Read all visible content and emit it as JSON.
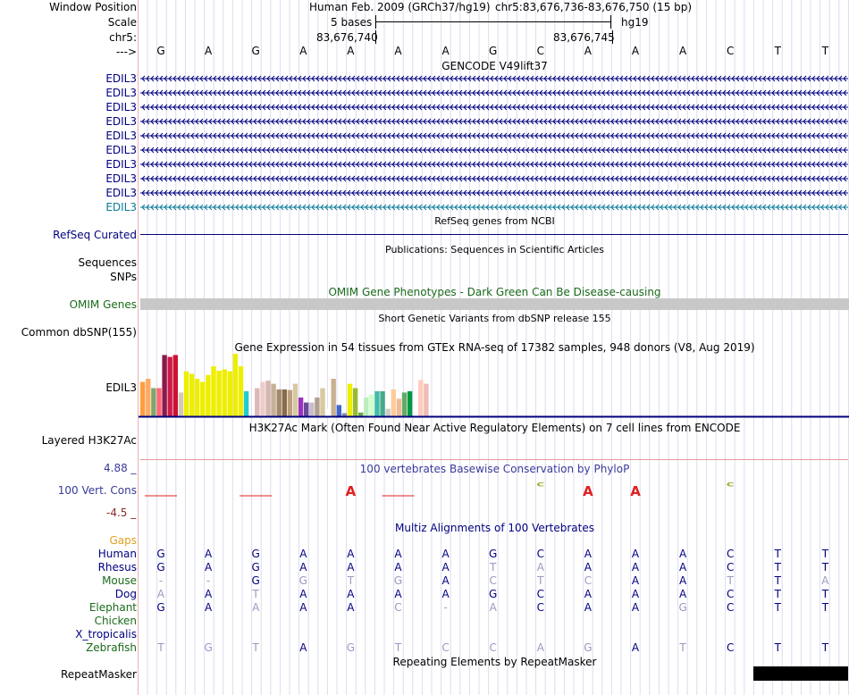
{
  "header": {
    "window_position_label": "Window Position",
    "scale_label": "Scale",
    "chr_label": "chr5:",
    "arrow_label": "--->",
    "assembly": "Human Feb. 2009 (GRCh37/hg19)",
    "position": "chr5:83,676,736-83,676,750 (15 bp)",
    "scale_text": "5 bases",
    "db": "hg19",
    "coord1": "83,676,740",
    "coord2": "83,676,745"
  },
  "base_sequence": [
    "G",
    "A",
    "G",
    "A",
    "A",
    "A",
    "A",
    "G",
    "C",
    "A",
    "A",
    "A",
    "C",
    "T",
    "T"
  ],
  "gencode": {
    "title": "GENCODE V49lift37",
    "gene_label": "EDIL3",
    "rows": [
      {
        "color": "#000080"
      },
      {
        "color": "#000080"
      },
      {
        "color": "#000080"
      },
      {
        "color": "#000080"
      },
      {
        "color": "#000080"
      },
      {
        "color": "#000080"
      },
      {
        "color": "#000080"
      },
      {
        "color": "#000080"
      },
      {
        "color": "#000080"
      },
      {
        "color": "#0c7a99"
      }
    ]
  },
  "refseq": {
    "title": "RefSeq genes from NCBI",
    "label": "RefSeq Curated"
  },
  "publications": {
    "title": "Publications: Sequences in Scientific Articles",
    "label1": "Sequences",
    "label2": "SNPs"
  },
  "omim": {
    "title": "OMIM Gene Phenotypes - Dark Green Can Be Disease-causing",
    "label": "OMIM Genes"
  },
  "snp": {
    "title": "Short Genetic Variants from dbSNP release 155",
    "label": "Common dbSNP(155)"
  },
  "gtex": {
    "title": "Gene Expression in 54 tissues from GTEx RNA-seq of 17382 samples, 948 donors (V8, Aug 2019)",
    "label": "EDIL3",
    "bars": [
      {
        "v": 0.55,
        "c": "#ff9e40"
      },
      {
        "v": 0.6,
        "c": "#ffaa66"
      },
      {
        "v": 0.45,
        "c": "#7aa86a"
      },
      {
        "v": 0.45,
        "c": "#ff6677"
      },
      {
        "v": 0.98,
        "c": "#8b1a4a"
      },
      {
        "v": 0.95,
        "c": "#cc1a4a"
      },
      {
        "v": 0.98,
        "c": "#cc1133"
      },
      {
        "v": 0.38,
        "c": "#d4c8b8"
      },
      {
        "v": 0.72,
        "c": "#eeee00"
      },
      {
        "v": 0.68,
        "c": "#eeee00"
      },
      {
        "v": 0.6,
        "c": "#eeee00"
      },
      {
        "v": 0.55,
        "c": "#eeee00"
      },
      {
        "v": 0.66,
        "c": "#eeee00"
      },
      {
        "v": 0.8,
        "c": "#eeee00"
      },
      {
        "v": 0.73,
        "c": "#eeee00"
      },
      {
        "v": 0.75,
        "c": "#eeee00"
      },
      {
        "v": 0.72,
        "c": "#eeee00"
      },
      {
        "v": 1.0,
        "c": "#eeee00"
      },
      {
        "v": 0.8,
        "c": "#eeee00"
      },
      {
        "v": 0.4,
        "c": "#22cccc"
      },
      {
        "v": 0.0,
        "c": "#ffffff"
      },
      {
        "v": 0.45,
        "c": "#ddb8b8"
      },
      {
        "v": 0.55,
        "c": "#eecccc"
      },
      {
        "v": 0.57,
        "c": "#d4b8b0"
      },
      {
        "v": 0.52,
        "c": "#c8b098"
      },
      {
        "v": 0.43,
        "c": "#a08a6a"
      },
      {
        "v": 0.43,
        "c": "#8b6a4a"
      },
      {
        "v": 0.42,
        "c": "#bba080"
      },
      {
        "v": 0.52,
        "c": "#d8c8a0"
      },
      {
        "v": 0.3,
        "c": "#9933bb"
      },
      {
        "v": 0.22,
        "c": "#6a4a9a"
      },
      {
        "v": 0.22,
        "c": "#ccbbcc"
      },
      {
        "v": 0.3,
        "c": "#b0a090"
      },
      {
        "v": 0.45,
        "c": "#d8c8a0"
      },
      {
        "v": 0.12,
        "c": "#ffffff"
      },
      {
        "v": 0.6,
        "c": "#c8b090"
      },
      {
        "v": 0.18,
        "c": "#4466cc"
      },
      {
        "v": 0.05,
        "c": "#8888aa"
      },
      {
        "v": 0.52,
        "c": "#eeee00"
      },
      {
        "v": 0.45,
        "c": "#99bb33"
      },
      {
        "v": 0.06,
        "c": "#66aa44"
      },
      {
        "v": 0.3,
        "c": "#bbeebb"
      },
      {
        "v": 0.35,
        "c": "#ccffcc"
      },
      {
        "v": 0.4,
        "c": "#44bbaa"
      },
      {
        "v": 0.4,
        "c": "#44aa88"
      },
      {
        "v": 0.12,
        "c": "#cccccc"
      },
      {
        "v": 0.43,
        "c": "#ffcc99"
      },
      {
        "v": 0.28,
        "c": "#eebb99"
      },
      {
        "v": 0.38,
        "c": "#66aa66"
      },
      {
        "v": 0.4,
        "c": "#009944"
      },
      {
        "v": 0.0,
        "c": "#ffffff"
      },
      {
        "v": 0.58,
        "c": "#ffccbb"
      },
      {
        "v": 0.52,
        "c": "#eebbbb"
      },
      {
        "v": 0.0,
        "c": "#ffffff"
      }
    ]
  },
  "h3k27ac": {
    "title": "H3K27Ac Mark (Often Found Near Active Regulatory Elements) on 7 cell lines from ENCODE",
    "label": "Layered H3K27Ac"
  },
  "phylop": {
    "title": "100 vertebrates Basewise Conservation by PhyloP",
    "label": "100 Vert. Cons",
    "max": "4.88 _",
    "min": "-4.5 _",
    "glyphs": [
      {
        "ch": "",
        "c": "#e02020"
      },
      {
        "ch": "",
        "c": "#e02020"
      },
      {
        "ch": "",
        "c": "#e02020"
      },
      {
        "ch": "",
        "c": "#e02020"
      },
      {
        "ch": "A",
        "c": "#e02020"
      },
      {
        "ch": "",
        "c": "#e02020"
      },
      {
        "ch": "",
        "c": "#e02020"
      },
      {
        "ch": "",
        "c": "#e02020"
      },
      {
        "ch": "C",
        "c": "#99aa22"
      },
      {
        "ch": "A",
        "c": "#e02020"
      },
      {
        "ch": "A",
        "c": "#e02020"
      },
      {
        "ch": "",
        "c": "#e02020"
      },
      {
        "ch": "C",
        "c": "#99aa22"
      },
      {
        "ch": "",
        "c": "#e02020"
      },
      {
        "ch": "",
        "c": "#22aa22"
      }
    ]
  },
  "multiz": {
    "title": "Multiz Alignments of 100 Vertebrates",
    "gaps_label": "Gaps",
    "species": [
      {
        "name": "Human",
        "color": "#000080",
        "seq": [
          "G",
          "A",
          "G",
          "A",
          "A",
          "A",
          "A",
          "G",
          "C",
          "A",
          "A",
          "A",
          "C",
          "T",
          "T"
        ],
        "dim": []
      },
      {
        "name": "Rhesus",
        "color": "#000080",
        "seq": [
          "G",
          "A",
          "G",
          "A",
          "A",
          "A",
          "A",
          "T",
          "A",
          "A",
          "A",
          "A",
          "C",
          "T",
          "T"
        ],
        "dim": [
          7,
          8
        ]
      },
      {
        "name": "Mouse",
        "color": "#1a6b1a",
        "seq": [
          "-",
          "-",
          "G",
          "G",
          "T",
          "G",
          "A",
          "C",
          "T",
          "C",
          "A",
          "A",
          "T",
          "T",
          "A"
        ],
        "dim": [
          0,
          1,
          3,
          4,
          5,
          7,
          8,
          9,
          12,
          14
        ]
      },
      {
        "name": "Dog",
        "color": "#000080",
        "seq": [
          "A",
          "A",
          "T",
          "A",
          "A",
          "A",
          "A",
          "G",
          "C",
          "A",
          "A",
          "A",
          "C",
          "T",
          "T"
        ],
        "dim": [
          0,
          2
        ]
      },
      {
        "name": "Elephant",
        "color": "#1a6b1a",
        "seq": [
          "G",
          "A",
          "A",
          "A",
          "A",
          "C",
          "-",
          "A",
          "C",
          "A",
          "A",
          "G",
          "C",
          "T",
          "T"
        ],
        "dim": [
          2,
          5,
          6,
          7,
          11
        ]
      },
      {
        "name": "Chicken",
        "color": "#1a6b1a",
        "seq": [],
        "dim": []
      },
      {
        "name": "X_tropicalis",
        "color": "#000080",
        "seq": [],
        "dim": []
      },
      {
        "name": "Zebrafish",
        "color": "#1a6b1a",
        "seq": [
          "T",
          "G",
          "T",
          "A",
          "G",
          "T",
          "C",
          "C",
          "A",
          "G",
          "A",
          "T",
          "C",
          "T",
          "T"
        ],
        "dim": [
          0,
          1,
          2,
          4,
          5,
          6,
          7,
          8,
          9,
          11
        ]
      }
    ]
  },
  "repeatmasker": {
    "title": "Repeating Elements by RepeatMasker",
    "label": "RepeatMasker"
  }
}
